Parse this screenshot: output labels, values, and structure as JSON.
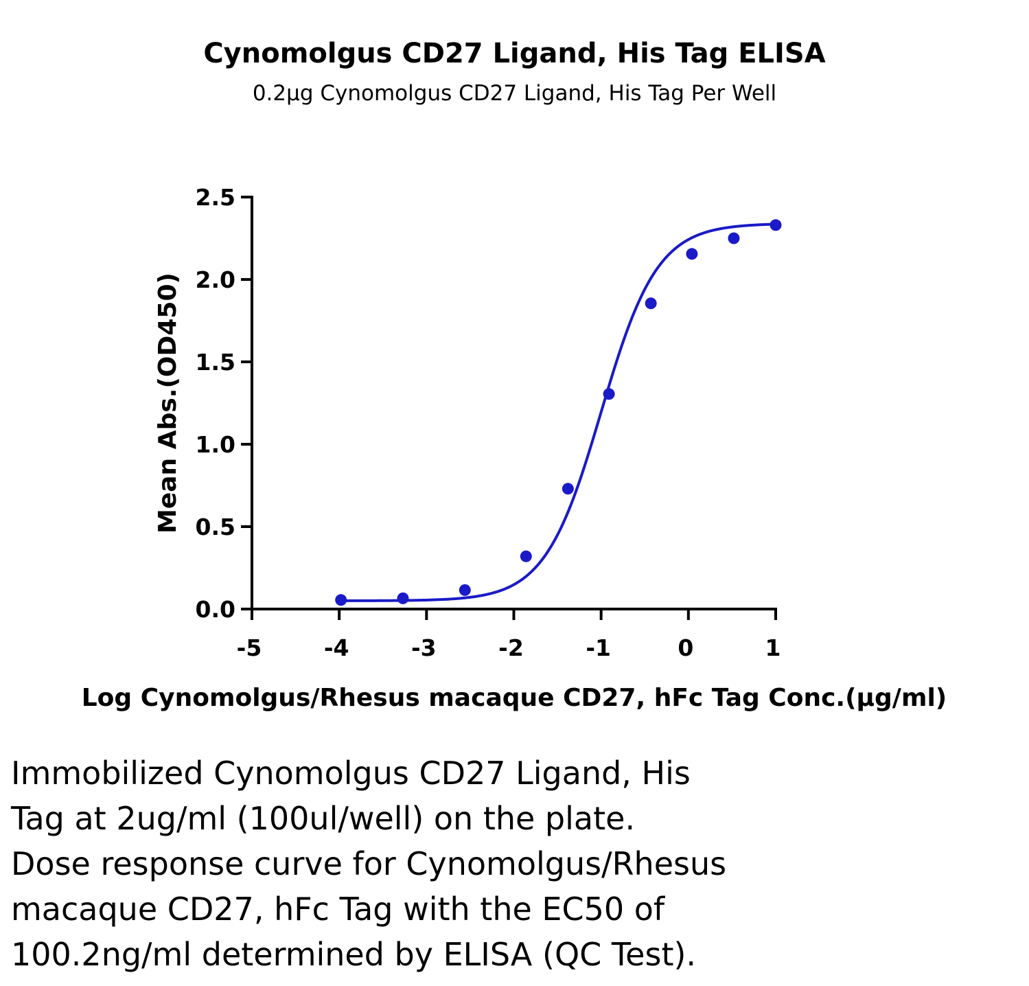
{
  "chart_data": {
    "type": "line",
    "title": "Cynomolgus CD27 Ligand, His Tag ELISA",
    "subtitle": "0.2μg Cynomolgus CD27 Ligand, His Tag Per Well",
    "xlabel": "Log Cynomolgus/Rhesus macaque CD27, hFc Tag Conc.(μg/ml)",
    "ylabel": "Mean Abs.(OD450)",
    "xlim": [
      -5,
      1
    ],
    "ylim": [
      0,
      2.5
    ],
    "x_ticks": [
      "-5",
      "-4",
      "-3",
      "-2",
      "-1",
      "0",
      "1"
    ],
    "y_ticks": [
      "0.0",
      "0.5",
      "1.0",
      "1.5",
      "2.0",
      "2.5"
    ],
    "grid": false,
    "legend": "none",
    "series": [
      {
        "x": [
          -3.98,
          -3.27,
          -2.56,
          -1.86,
          -1.38,
          -0.91,
          -0.43,
          0.04,
          0.52,
          1.0
        ],
        "y": [
          0.055,
          0.065,
          0.115,
          0.32,
          0.73,
          1.305,
          1.855,
          2.155,
          2.25,
          2.33
        ],
        "color": "#1a1ac8",
        "fit": "4PL"
      }
    ],
    "fit_params": {
      "bottom": 0.05,
      "top": 2.34,
      "log_ec50": -1.0,
      "hill": 1.35
    }
  },
  "caption_lines": [
    "Immobilized Cynomolgus CD27 Ligand, His",
    "Tag at 2ug/ml (100ul/well) on the plate.",
    "Dose response curve for Cynomolgus/Rhesus",
    "macaque CD27, hFc Tag with the EC50 of",
    "100.2ng/ml determined by ELISA (QC Test)."
  ]
}
